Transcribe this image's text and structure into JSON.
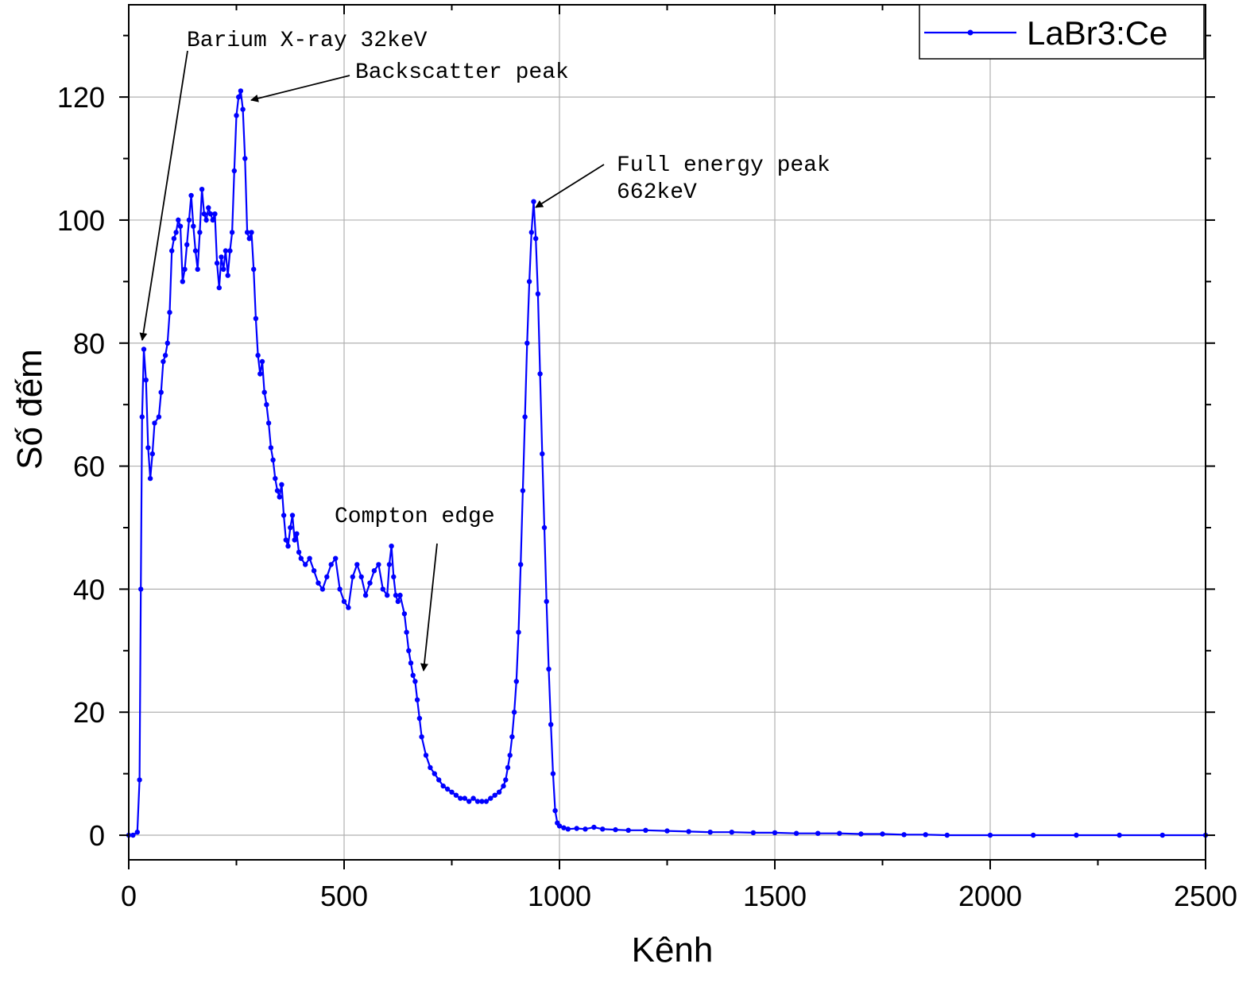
{
  "chart_data": {
    "type": "line",
    "xlabel": "Kênh",
    "ylabel": "Số đếm",
    "xlim": [
      0,
      2500
    ],
    "ylim": [
      -4,
      135
    ],
    "x_ticks": [
      0,
      500,
      1000,
      1500,
      2000,
      2500
    ],
    "y_ticks": [
      0,
      20,
      40,
      60,
      80,
      100,
      120
    ],
    "grid": true,
    "legend_position": "top-right",
    "series": [
      {
        "name": "LaBr3:Ce",
        "color": "#0000ff",
        "marker": "circle",
        "points": [
          [
            0,
            0
          ],
          [
            10,
            0
          ],
          [
            20,
            0.5
          ],
          [
            25,
            9
          ],
          [
            28,
            40
          ],
          [
            31,
            68
          ],
          [
            35,
            79
          ],
          [
            40,
            74
          ],
          [
            45,
            63
          ],
          [
            50,
            58
          ],
          [
            55,
            62
          ],
          [
            60,
            67
          ],
          [
            70,
            68
          ],
          [
            75,
            72
          ],
          [
            80,
            77
          ],
          [
            85,
            78
          ],
          [
            90,
            80
          ],
          [
            95,
            85
          ],
          [
            100,
            95
          ],
          [
            105,
            97
          ],
          [
            110,
            98
          ],
          [
            115,
            100
          ],
          [
            120,
            99
          ],
          [
            125,
            90
          ],
          [
            130,
            92
          ],
          [
            135,
            96
          ],
          [
            140,
            100
          ],
          [
            145,
            104
          ],
          [
            150,
            99
          ],
          [
            155,
            95
          ],
          [
            160,
            92
          ],
          [
            165,
            98
          ],
          [
            170,
            105
          ],
          [
            175,
            101
          ],
          [
            180,
            100
          ],
          [
            185,
            102
          ],
          [
            190,
            101
          ],
          [
            195,
            100
          ],
          [
            200,
            101
          ],
          [
            205,
            93
          ],
          [
            210,
            89
          ],
          [
            215,
            94
          ],
          [
            220,
            92
          ],
          [
            225,
            95
          ],
          [
            230,
            91
          ],
          [
            235,
            95
          ],
          [
            240,
            98
          ],
          [
            245,
            108
          ],
          [
            250,
            117
          ],
          [
            255,
            120
          ],
          [
            260,
            121
          ],
          [
            265,
            118
          ],
          [
            270,
            110
          ],
          [
            275,
            98
          ],
          [
            280,
            97
          ],
          [
            285,
            98
          ],
          [
            290,
            92
          ],
          [
            295,
            84
          ],
          [
            300,
            78
          ],
          [
            305,
            75
          ],
          [
            310,
            77
          ],
          [
            315,
            72
          ],
          [
            320,
            70
          ],
          [
            325,
            67
          ],
          [
            330,
            63
          ],
          [
            335,
            61
          ],
          [
            340,
            58
          ],
          [
            345,
            56
          ],
          [
            350,
            55
          ],
          [
            355,
            57
          ],
          [
            360,
            52
          ],
          [
            365,
            48
          ],
          [
            370,
            47
          ],
          [
            375,
            50
          ],
          [
            380,
            52
          ],
          [
            385,
            48
          ],
          [
            390,
            49
          ],
          [
            395,
            46
          ],
          [
            400,
            45
          ],
          [
            410,
            44
          ],
          [
            420,
            45
          ],
          [
            430,
            43
          ],
          [
            440,
            41
          ],
          [
            450,
            40
          ],
          [
            460,
            42
          ],
          [
            470,
            44
          ],
          [
            480,
            45
          ],
          [
            490,
            40
          ],
          [
            500,
            38
          ],
          [
            510,
            37
          ],
          [
            520,
            42
          ],
          [
            530,
            44
          ],
          [
            540,
            42
          ],
          [
            550,
            39
          ],
          [
            560,
            41
          ],
          [
            570,
            43
          ],
          [
            580,
            44
          ],
          [
            590,
            40
          ],
          [
            600,
            39
          ],
          [
            605,
            44
          ],
          [
            610,
            47
          ],
          [
            615,
            42
          ],
          [
            620,
            39
          ],
          [
            625,
            38
          ],
          [
            630,
            39
          ],
          [
            640,
            36
          ],
          [
            645,
            33
          ],
          [
            650,
            30
          ],
          [
            655,
            28
          ],
          [
            660,
            26
          ],
          [
            665,
            25
          ],
          [
            670,
            22
          ],
          [
            675,
            19
          ],
          [
            680,
            16
          ],
          [
            690,
            13
          ],
          [
            700,
            11
          ],
          [
            710,
            10
          ],
          [
            720,
            9
          ],
          [
            730,
            8
          ],
          [
            740,
            7.5
          ],
          [
            750,
            7
          ],
          [
            760,
            6.5
          ],
          [
            770,
            6
          ],
          [
            780,
            6
          ],
          [
            790,
            5.5
          ],
          [
            800,
            6
          ],
          [
            810,
            5.5
          ],
          [
            820,
            5.5
          ],
          [
            830,
            5.5
          ],
          [
            840,
            6
          ],
          [
            850,
            6.5
          ],
          [
            860,
            7
          ],
          [
            870,
            8
          ],
          [
            875,
            9
          ],
          [
            880,
            11
          ],
          [
            885,
            13
          ],
          [
            890,
            16
          ],
          [
            895,
            20
          ],
          [
            900,
            25
          ],
          [
            905,
            33
          ],
          [
            910,
            44
          ],
          [
            915,
            56
          ],
          [
            920,
            68
          ],
          [
            925,
            80
          ],
          [
            930,
            90
          ],
          [
            935,
            98
          ],
          [
            940,
            103
          ],
          [
            945,
            97
          ],
          [
            950,
            88
          ],
          [
            955,
            75
          ],
          [
            960,
            62
          ],
          [
            965,
            50
          ],
          [
            970,
            38
          ],
          [
            975,
            27
          ],
          [
            980,
            18
          ],
          [
            985,
            10
          ],
          [
            990,
            4
          ],
          [
            995,
            2
          ],
          [
            1000,
            1.5
          ],
          [
            1010,
            1.2
          ],
          [
            1020,
            1
          ],
          [
            1040,
            1.1
          ],
          [
            1060,
            1
          ],
          [
            1080,
            1.3
          ],
          [
            1100,
            1
          ],
          [
            1130,
            0.9
          ],
          [
            1160,
            0.8
          ],
          [
            1200,
            0.8
          ],
          [
            1250,
            0.7
          ],
          [
            1300,
            0.6
          ],
          [
            1350,
            0.5
          ],
          [
            1400,
            0.5
          ],
          [
            1450,
            0.4
          ],
          [
            1500,
            0.4
          ],
          [
            1550,
            0.3
          ],
          [
            1600,
            0.3
          ],
          [
            1650,
            0.3
          ],
          [
            1700,
            0.2
          ],
          [
            1750,
            0.2
          ],
          [
            1800,
            0.1
          ],
          [
            1850,
            0.1
          ],
          [
            1900,
            0
          ],
          [
            2000,
            0
          ],
          [
            2100,
            0
          ],
          [
            2200,
            0
          ],
          [
            2300,
            0
          ],
          [
            2400,
            0
          ],
          [
            2500,
            0
          ]
        ]
      }
    ],
    "annotations": [
      {
        "lines": [
          "Barium X-ray 32keV"
        ],
        "x": 35,
        "y": 80
      },
      {
        "lines": [
          "Backscatter peak"
        ],
        "x": 285,
        "y": 120
      },
      {
        "lines": [
          "Full energy peak",
          "662keV"
        ],
        "x": 940,
        "y": 102
      },
      {
        "lines": [
          "Compton edge"
        ],
        "x": 680,
        "y": 26
      }
    ]
  }
}
